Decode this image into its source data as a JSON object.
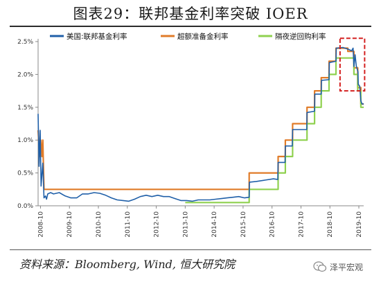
{
  "header": {
    "title": "图表29：联邦基金利率突破 IOER"
  },
  "footer": {
    "source": "资料来源：Bloomberg, Wind, 恒大研究院",
    "brand": "泽平宏观"
  },
  "chart_data": {
    "type": "line",
    "ylim": [
      0,
      2.5
    ],
    "y_ticks": [
      0,
      0.5,
      1.0,
      1.5,
      2.0,
      2.5
    ],
    "y_tick_labels": [
      "0.0%",
      "0.5%",
      "1.0%",
      "1.5%",
      "2.0%",
      "2.5%"
    ],
    "x_range": [
      2008.667,
      2019.917
    ],
    "x_ticks": [
      2008.75,
      2009.75,
      2010.75,
      2011.75,
      2012.75,
      2013.75,
      2014.75,
      2015.75,
      2016.75,
      2017.75,
      2018.75,
      2019.75
    ],
    "x_tick_labels": [
      "2008-10",
      "2009-10",
      "2010-10",
      "2011-10",
      "2012-10",
      "2013-10",
      "2014-10",
      "2015-10",
      "2016-10",
      "2017-10",
      "2018-10",
      "2019-10"
    ],
    "grid": false,
    "legend_position": "top",
    "highlight": {
      "x": [
        2019.1,
        2019.95
      ],
      "y": [
        1.75,
        2.55
      ]
    },
    "series": [
      {
        "name": "美国:联邦基金利率",
        "color": "#1f5fa8",
        "points": [
          [
            2008.667,
            1.4
          ],
          [
            2008.7,
            0.6
          ],
          [
            2008.74,
            1.15
          ],
          [
            2008.77,
            0.3
          ],
          [
            2008.83,
            0.65
          ],
          [
            2008.87,
            0.12
          ],
          [
            2008.92,
            0.15
          ],
          [
            2008.96,
            0.1
          ],
          [
            2009.0,
            0.18
          ],
          [
            2009.1,
            0.2
          ],
          [
            2009.2,
            0.18
          ],
          [
            2009.4,
            0.2
          ],
          [
            2009.6,
            0.15
          ],
          [
            2009.8,
            0.12
          ],
          [
            2010.0,
            0.12
          ],
          [
            2010.2,
            0.18
          ],
          [
            2010.4,
            0.18
          ],
          [
            2010.6,
            0.2
          ],
          [
            2010.8,
            0.19
          ],
          [
            2011.0,
            0.16
          ],
          [
            2011.2,
            0.12
          ],
          [
            2011.4,
            0.09
          ],
          [
            2011.6,
            0.08
          ],
          [
            2011.8,
            0.07
          ],
          [
            2012.0,
            0.1
          ],
          [
            2012.2,
            0.14
          ],
          [
            2012.4,
            0.16
          ],
          [
            2012.6,
            0.14
          ],
          [
            2012.8,
            0.16
          ],
          [
            2013.0,
            0.14
          ],
          [
            2013.2,
            0.14
          ],
          [
            2013.4,
            0.11
          ],
          [
            2013.6,
            0.08
          ],
          [
            2013.8,
            0.08
          ],
          [
            2014.0,
            0.07
          ],
          [
            2014.2,
            0.09
          ],
          [
            2014.4,
            0.09
          ],
          [
            2014.6,
            0.09
          ],
          [
            2014.8,
            0.1
          ],
          [
            2015.0,
            0.11
          ],
          [
            2015.2,
            0.12
          ],
          [
            2015.4,
            0.13
          ],
          [
            2015.6,
            0.14
          ],
          [
            2015.8,
            0.12
          ],
          [
            2015.96,
            0.13
          ],
          [
            2015.97,
            0.36
          ],
          [
            2016.2,
            0.37
          ],
          [
            2016.5,
            0.39
          ],
          [
            2016.8,
            0.41
          ],
          [
            2016.95,
            0.4
          ],
          [
            2016.96,
            0.66
          ],
          [
            2017.2,
            0.66
          ],
          [
            2017.21,
            0.91
          ],
          [
            2017.45,
            0.91
          ],
          [
            2017.46,
            1.16
          ],
          [
            2017.95,
            1.16
          ],
          [
            2017.96,
            1.42
          ],
          [
            2018.22,
            1.44
          ],
          [
            2018.23,
            1.7
          ],
          [
            2018.45,
            1.7
          ],
          [
            2018.46,
            1.91
          ],
          [
            2018.72,
            1.92
          ],
          [
            2018.73,
            2.18
          ],
          [
            2018.96,
            2.2
          ],
          [
            2018.97,
            2.4
          ],
          [
            2019.2,
            2.41
          ],
          [
            2019.4,
            2.38
          ],
          [
            2019.5,
            2.36
          ],
          [
            2019.55,
            2.4
          ],
          [
            2019.58,
            2.12
          ],
          [
            2019.62,
            2.3
          ],
          [
            2019.66,
            2.13
          ],
          [
            2019.72,
            2.04
          ],
          [
            2019.73,
            1.85
          ],
          [
            2019.78,
            1.82
          ],
          [
            2019.82,
            1.6
          ],
          [
            2019.86,
            1.55
          ],
          [
            2019.92,
            1.55
          ]
        ]
      },
      {
        "name": "超额准备金利率",
        "color": "#e07b28",
        "points": [
          [
            2008.667,
            1.15
          ],
          [
            2008.72,
            0.75
          ],
          [
            2008.76,
            1.0
          ],
          [
            2008.8,
            0.75
          ],
          [
            2008.83,
            1.0
          ],
          [
            2008.87,
            0.25
          ],
          [
            2015.96,
            0.25
          ],
          [
            2015.96,
            0.5
          ],
          [
            2016.96,
            0.5
          ],
          [
            2016.96,
            0.75
          ],
          [
            2017.21,
            0.75
          ],
          [
            2017.21,
            1.0
          ],
          [
            2017.46,
            1.0
          ],
          [
            2017.46,
            1.25
          ],
          [
            2017.96,
            1.25
          ],
          [
            2017.96,
            1.5
          ],
          [
            2018.22,
            1.5
          ],
          [
            2018.22,
            1.75
          ],
          [
            2018.45,
            1.75
          ],
          [
            2018.45,
            1.95
          ],
          [
            2018.72,
            1.95
          ],
          [
            2018.72,
            2.2
          ],
          [
            2018.96,
            2.2
          ],
          [
            2018.96,
            2.4
          ],
          [
            2019.37,
            2.4
          ],
          [
            2019.37,
            2.35
          ],
          [
            2019.58,
            2.35
          ],
          [
            2019.58,
            2.1
          ],
          [
            2019.71,
            2.1
          ],
          [
            2019.71,
            1.8
          ],
          [
            2019.82,
            1.8
          ],
          [
            2019.82,
            1.55
          ],
          [
            2019.92,
            1.55
          ]
        ]
      },
      {
        "name": "隔夜逆回购利率",
        "color": "#8fd14f",
        "points": [
          [
            2013.75,
            0.05
          ],
          [
            2015.96,
            0.05
          ],
          [
            2015.96,
            0.25
          ],
          [
            2016.96,
            0.25
          ],
          [
            2016.96,
            0.5
          ],
          [
            2017.21,
            0.5
          ],
          [
            2017.21,
            0.75
          ],
          [
            2017.46,
            0.75
          ],
          [
            2017.46,
            1.0
          ],
          [
            2017.96,
            1.0
          ],
          [
            2017.96,
            1.25
          ],
          [
            2018.22,
            1.25
          ],
          [
            2018.22,
            1.5
          ],
          [
            2018.45,
            1.5
          ],
          [
            2018.45,
            1.75
          ],
          [
            2018.72,
            1.75
          ],
          [
            2018.72,
            2.0
          ],
          [
            2018.96,
            2.0
          ],
          [
            2018.96,
            2.25
          ],
          [
            2019.58,
            2.25
          ],
          [
            2019.58,
            2.0
          ],
          [
            2019.71,
            2.0
          ],
          [
            2019.71,
            1.75
          ],
          [
            2019.82,
            1.75
          ],
          [
            2019.82,
            1.5
          ],
          [
            2019.92,
            1.5
          ]
        ]
      }
    ]
  }
}
